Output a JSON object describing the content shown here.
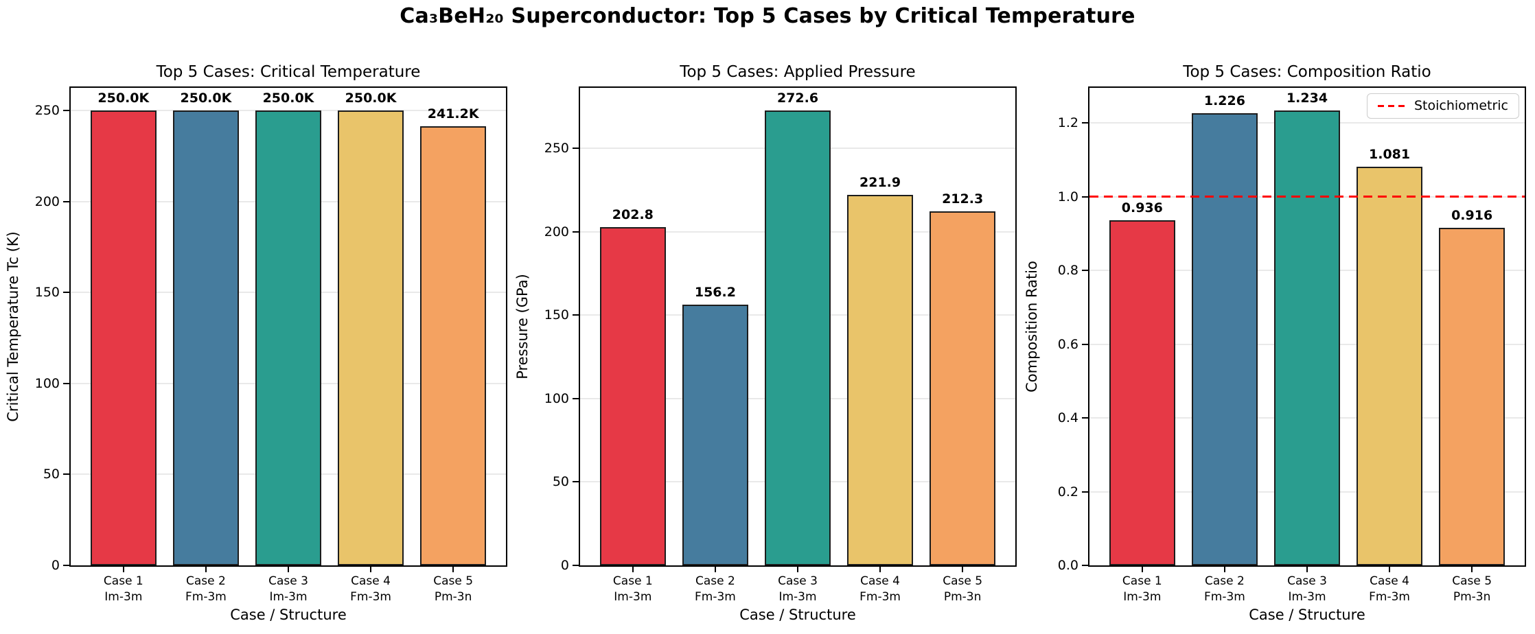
{
  "suptitle": "Ca₃BeH₂₀ Superconductor: Top 5 Cases by Critical Temperature",
  "categories": [
    {
      "case": "Case 1",
      "structure": "Im-3m"
    },
    {
      "case": "Case 2",
      "structure": "Fm-3m"
    },
    {
      "case": "Case 3",
      "structure": "Im-3m"
    },
    {
      "case": "Case 4",
      "structure": "Fm-3m"
    },
    {
      "case": "Case 5",
      "structure": "Pm-3n"
    }
  ],
  "palette": [
    "#e63946",
    "#467c9e",
    "#2a9d8f",
    "#e9c46a",
    "#f4a261"
  ],
  "colors": {
    "bar_edge": "#1c1c1c",
    "grid": "#e9e9e9",
    "spine": "#000000",
    "refline": "#ff0000",
    "legend_border": "#cccccc",
    "text": "#000000",
    "background": "#ffffff"
  },
  "chart_data": [
    {
      "type": "bar",
      "title": "Top 5 Cases: Critical Temperature",
      "xlabel": "Case / Structure",
      "ylabel": "Critical Temperature Tc (K)",
      "categories": [
        "Case 1 Im-3m",
        "Case 2 Fm-3m",
        "Case 3 Im-3m",
        "Case 4 Fm-3m",
        "Case 5 Pm-3n"
      ],
      "values": [
        250.0,
        250.0,
        250.0,
        250.0,
        241.2
      ],
      "bar_labels": [
        "250.0K",
        "250.0K",
        "250.0K",
        "250.0K",
        "241.2K"
      ],
      "yticks": [
        0,
        50,
        100,
        150,
        200,
        250
      ],
      "ytick_labels": [
        "0",
        "50",
        "100",
        "150",
        "200",
        "250"
      ],
      "ylim": [
        0,
        262.5
      ],
      "grid": true,
      "legend": null,
      "refline": null
    },
    {
      "type": "bar",
      "title": "Top 5 Cases: Applied Pressure",
      "xlabel": "Case / Structure",
      "ylabel": "Pressure (GPa)",
      "categories": [
        "Case 1 Im-3m",
        "Case 2 Fm-3m",
        "Case 3 Im-3m",
        "Case 4 Fm-3m",
        "Case 5 Pm-3n"
      ],
      "values": [
        202.8,
        156.2,
        272.6,
        221.9,
        212.3
      ],
      "bar_labels": [
        "202.8",
        "156.2",
        "272.6",
        "221.9",
        "212.3"
      ],
      "yticks": [
        0,
        50,
        100,
        150,
        200,
        250
      ],
      "ytick_labels": [
        "0",
        "50",
        "100",
        "150",
        "200",
        "250"
      ],
      "ylim": [
        0,
        286.2
      ],
      "grid": true,
      "legend": null,
      "refline": null
    },
    {
      "type": "bar",
      "title": "Top 5 Cases: Composition Ratio",
      "xlabel": "Case / Structure",
      "ylabel": "Composition Ratio",
      "categories": [
        "Case 1 Im-3m",
        "Case 2 Fm-3m",
        "Case 3 Im-3m",
        "Case 4 Fm-3m",
        "Case 5 Pm-3n"
      ],
      "values": [
        0.936,
        1.226,
        1.234,
        1.081,
        0.916
      ],
      "bar_labels": [
        "0.936",
        "1.226",
        "1.234",
        "1.081",
        "0.916"
      ],
      "yticks": [
        0,
        0.2,
        0.4,
        0.6,
        0.8,
        1.0,
        1.2
      ],
      "ytick_labels": [
        "0.0",
        "0.2",
        "0.4",
        "0.6",
        "0.8",
        "1.0",
        "1.2"
      ],
      "ylim": [
        0,
        1.2957
      ],
      "grid": true,
      "refline": {
        "value": 1.0,
        "linestyle": "dashed",
        "color": "#ff0000",
        "label": "Stoichiometric"
      },
      "legend": {
        "label": "Stoichiometric",
        "position": "upper right"
      }
    }
  ]
}
